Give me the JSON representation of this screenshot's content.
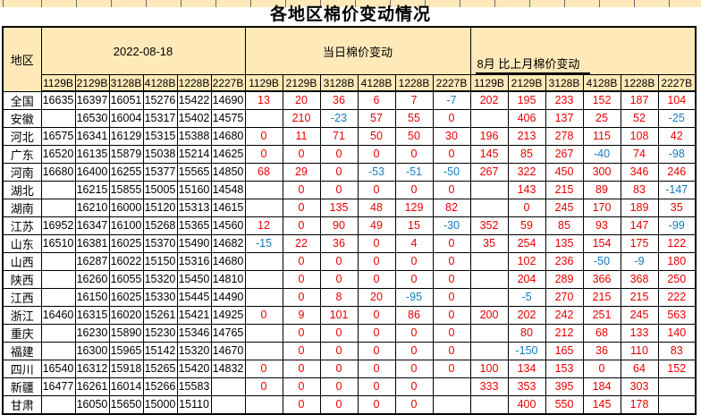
{
  "title": "各地区棉价变动情况",
  "colors": {
    "header_bg": "#ffe9b8",
    "positive_change": "#e80000",
    "negative_change": "#147bbe",
    "price_text": "#000000",
    "grid": "#000000"
  },
  "table": {
    "region_header": "地区",
    "groups": [
      {
        "label": "2022-08-18",
        "columns": [
          "1129B",
          "2129B",
          "3128B",
          "4128B",
          "1228B",
          "2227B"
        ]
      },
      {
        "label": "当日棉价变动",
        "columns": [
          "1129B",
          "2129B",
          "3128B",
          "4128B",
          "1228B",
          "2227B"
        ]
      },
      {
        "label": "8月 比上月棉价变动",
        "columns": [
          "1129B",
          "2129B",
          "3128B",
          "4128B",
          "1228B",
          "2227B"
        ]
      }
    ],
    "rows": [
      {
        "region": "全国",
        "prices": [
          "16635",
          "16397",
          "16051",
          "15276",
          "15422",
          "14690"
        ],
        "daily": [
          "13",
          "20",
          "36",
          "6",
          "7",
          "-7"
        ],
        "monthly": [
          "202",
          "195",
          "233",
          "152",
          "187",
          "104"
        ]
      },
      {
        "region": "安徽",
        "prices": [
          "",
          "16530",
          "16004",
          "15317",
          "15402",
          "14575"
        ],
        "daily": [
          "",
          "210",
          "-23",
          "57",
          "55",
          "0"
        ],
        "monthly": [
          "",
          "406",
          "137",
          "25",
          "52",
          "-25"
        ]
      },
      {
        "region": "河北",
        "prices": [
          "16575",
          "16341",
          "16129",
          "15315",
          "15388",
          "14680"
        ],
        "daily": [
          "0",
          "11",
          "71",
          "50",
          "50",
          "30"
        ],
        "monthly": [
          "196",
          "213",
          "278",
          "115",
          "108",
          "42"
        ]
      },
      {
        "region": "广东",
        "prices": [
          "16520",
          "16135",
          "15879",
          "15038",
          "15214",
          "14625"
        ],
        "daily": [
          "0",
          "0",
          "0",
          "0",
          "0",
          "0"
        ],
        "monthly": [
          "145",
          "85",
          "267",
          "-40",
          "74",
          "-98"
        ]
      },
      {
        "region": "河南",
        "prices": [
          "16680",
          "16400",
          "16255",
          "15377",
          "15565",
          "14850"
        ],
        "daily": [
          "68",
          "29",
          "0",
          "-53",
          "-51",
          "-50"
        ],
        "monthly": [
          "267",
          "322",
          "450",
          "300",
          "346",
          "246"
        ]
      },
      {
        "region": "湖北",
        "prices": [
          "",
          "16215",
          "15855",
          "15005",
          "15160",
          "14548"
        ],
        "daily": [
          "",
          "0",
          "0",
          "0",
          "0",
          "0"
        ],
        "monthly": [
          "",
          "143",
          "215",
          "89",
          "83",
          "-147"
        ]
      },
      {
        "region": "湖南",
        "prices": [
          "",
          "16210",
          "16000",
          "15120",
          "15313",
          "14615"
        ],
        "daily": [
          "",
          "0",
          "135",
          "48",
          "129",
          "82"
        ],
        "monthly": [
          "",
          "0",
          "245",
          "170",
          "189",
          "35"
        ]
      },
      {
        "region": "江苏",
        "prices": [
          "16952",
          "16347",
          "16100",
          "15268",
          "15365",
          "14560"
        ],
        "daily": [
          "12",
          "0",
          "90",
          "49",
          "15",
          "-30"
        ],
        "monthly": [
          "352",
          "59",
          "85",
          "93",
          "147",
          "-99"
        ]
      },
      {
        "region": "山东",
        "prices": [
          "16510",
          "16381",
          "16025",
          "15370",
          "15490",
          "14682"
        ],
        "daily": [
          "-15",
          "22",
          "36",
          "0",
          "4",
          "0"
        ],
        "monthly": [
          "35",
          "254",
          "135",
          "154",
          "175",
          "122"
        ]
      },
      {
        "region": "山西",
        "prices": [
          "",
          "16287",
          "16022",
          "15150",
          "15316",
          "14680"
        ],
        "daily": [
          "",
          "0",
          "0",
          "0",
          "0",
          "0"
        ],
        "monthly": [
          "",
          "102",
          "236",
          "-50",
          "-9",
          "180"
        ]
      },
      {
        "region": "陕西",
        "prices": [
          "",
          "16260",
          "16055",
          "15320",
          "15450",
          "14810"
        ],
        "daily": [
          "",
          "0",
          "0",
          "0",
          "0",
          "0"
        ],
        "monthly": [
          "",
          "204",
          "289",
          "366",
          "368",
          "250"
        ]
      },
      {
        "region": "江西",
        "prices": [
          "",
          "16150",
          "16025",
          "15330",
          "15445",
          "14490"
        ],
        "daily": [
          "",
          "0",
          "8",
          "20",
          "-95",
          "0"
        ],
        "monthly": [
          "",
          "-5",
          "270",
          "215",
          "215",
          "222"
        ]
      },
      {
        "region": "浙江",
        "prices": [
          "16460",
          "16315",
          "16020",
          "15261",
          "15421",
          "14925"
        ],
        "daily": [
          "0",
          "9",
          "101",
          "0",
          "86",
          "0"
        ],
        "monthly": [
          "200",
          "202",
          "242",
          "251",
          "245",
          "563"
        ]
      },
      {
        "region": "重庆",
        "prices": [
          "",
          "16230",
          "15890",
          "15230",
          "15346",
          "14765"
        ],
        "daily": [
          "",
          "0",
          "0",
          "0",
          "0",
          "0"
        ],
        "monthly": [
          "",
          "80",
          "212",
          "68",
          "133",
          "140"
        ]
      },
      {
        "region": "福建",
        "prices": [
          "",
          "16300",
          "15965",
          "15142",
          "15320",
          "14670"
        ],
        "daily": [
          "",
          "0",
          "0",
          "0",
          "0",
          "0"
        ],
        "monthly": [
          "",
          "-150",
          "165",
          "36",
          "110",
          "83"
        ]
      },
      {
        "region": "四川",
        "prices": [
          "16540",
          "16312",
          "15918",
          "15265",
          "15420",
          "14832"
        ],
        "daily": [
          "0",
          "0",
          "0",
          "0",
          "0",
          "0"
        ],
        "monthly": [
          "100",
          "134",
          "153",
          "0",
          "64",
          "152"
        ]
      },
      {
        "region": "新疆",
        "prices": [
          "16477",
          "16261",
          "16014",
          "15266",
          "15583",
          ""
        ],
        "daily": [
          "0",
          "0",
          "0",
          "0",
          "0",
          ""
        ],
        "monthly": [
          "333",
          "353",
          "395",
          "184",
          "303",
          ""
        ]
      },
      {
        "region": "甘肃",
        "prices": [
          "",
          "16050",
          "15650",
          "15000",
          "15110",
          ""
        ],
        "daily": [
          "",
          "0",
          "0",
          "0",
          "0",
          ""
        ],
        "monthly": [
          "",
          "400",
          "550",
          "145",
          "178",
          ""
        ]
      }
    ]
  }
}
